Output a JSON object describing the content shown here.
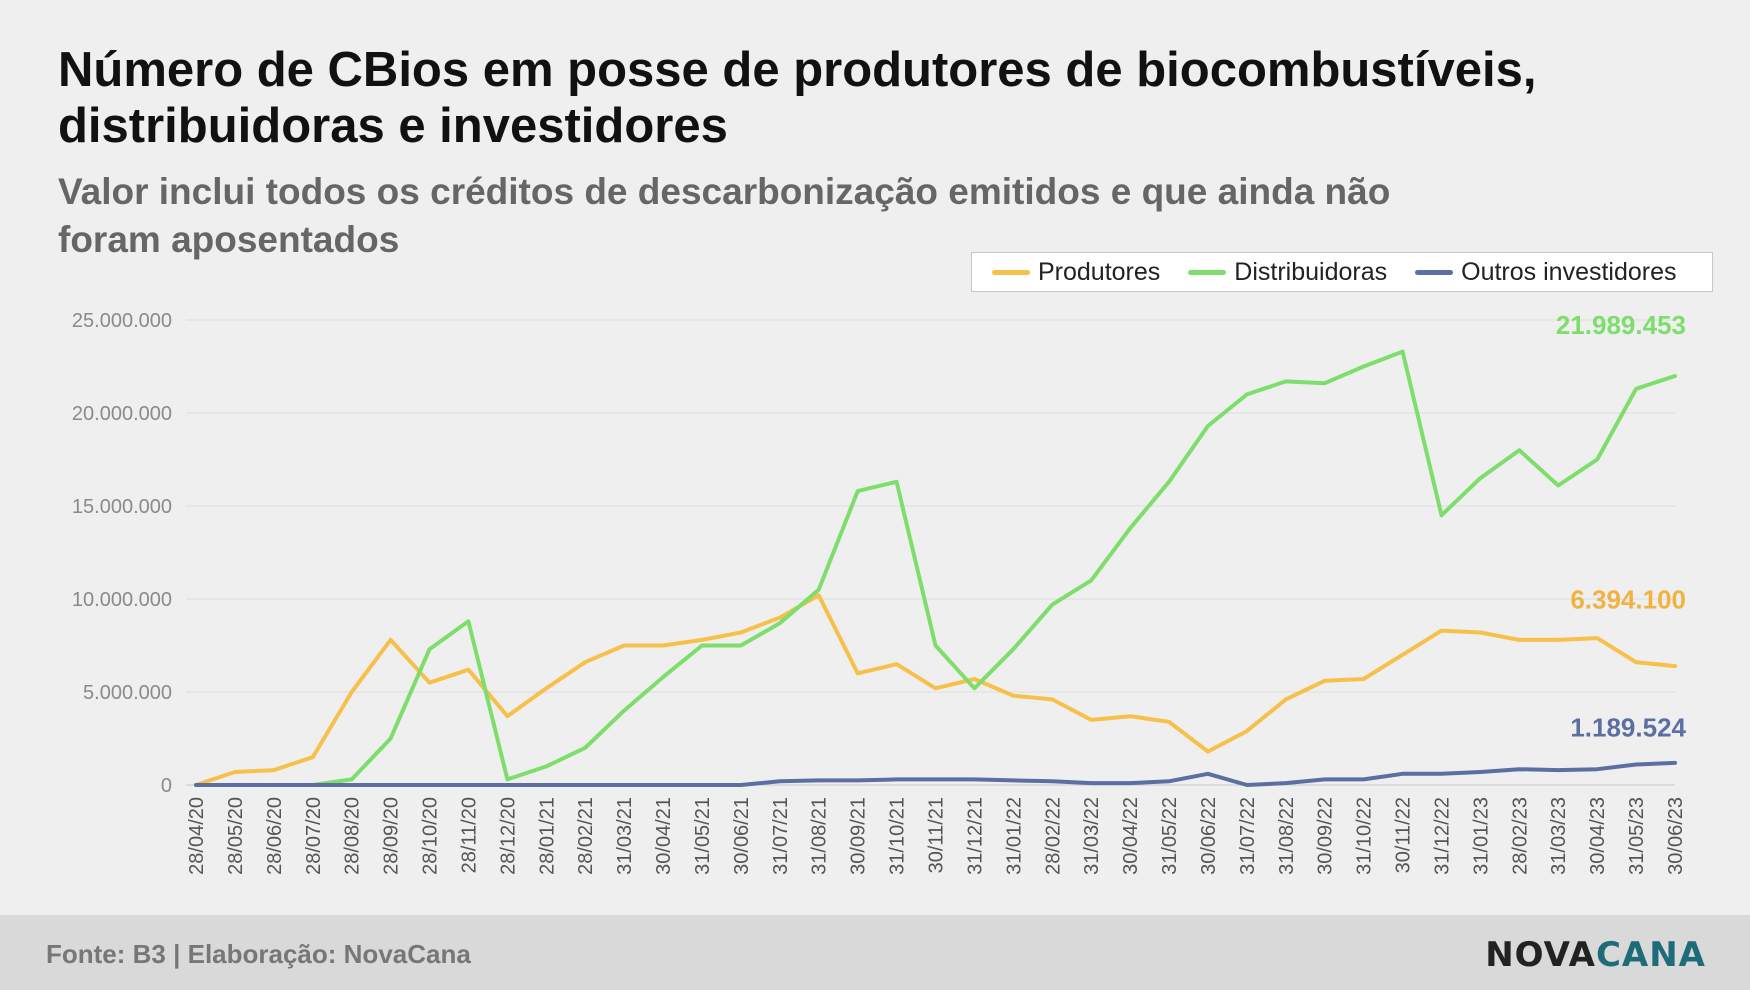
{
  "title": "Número de CBios em posse de produtores de biocombustíveis, distribuidoras e investidores",
  "subtitle": "Valor inclui todos os créditos de descarbonização emitidos e que ainda não foram aposentados",
  "source": "Fonte: B3 | Elaboração: NovaCana",
  "logo": {
    "part1": "NOVA",
    "part2": "CANA"
  },
  "colors": {
    "produtores": "#f7c04a",
    "distribuidoras": "#7ede6c",
    "outros": "#5b6fa3",
    "grid": "#dddddd",
    "tick": "#8a8a8a"
  },
  "chart_data": {
    "type": "line",
    "ylim": [
      0,
      25000000
    ],
    "y_ticks": [
      "0",
      "5.000.000",
      "10.000.000",
      "15.000.000",
      "20.000.000",
      "25.000.000"
    ],
    "x_ticks": [
      "28/04/20",
      "28/05/20",
      "28/06/20",
      "28/07/20",
      "28/08/20",
      "28/09/20",
      "28/10/20",
      "28/11/20",
      "28/12/20",
      "28/01/21",
      "28/02/21",
      "31/03/21",
      "30/04/21",
      "31/05/21",
      "30/06/21",
      "31/07/21",
      "31/08/21",
      "30/09/21",
      "31/10/21",
      "30/11/21",
      "31/12/21",
      "31/01/22",
      "28/02/22",
      "31/03/22",
      "30/04/22",
      "31/05/22",
      "30/06/22",
      "31/07/22",
      "31/08/22",
      "30/09/22",
      "31/10/22",
      "30/11/22",
      "31/12/22",
      "31/01/23",
      "28/02/23",
      "31/03/23",
      "30/04/23",
      "31/05/23",
      "30/06/23"
    ],
    "legend": [
      "Produtores",
      "Distribuidoras",
      "Outros investidores"
    ],
    "end_labels": [
      "21.989.453",
      "6.394.100",
      "1.189.524"
    ],
    "series": [
      {
        "name": "Produtores",
        "values": [
          0,
          700000,
          800000,
          1500000,
          5000000,
          7800000,
          5500000,
          6200000,
          3700000,
          5200000,
          6600000,
          7500000,
          7500000,
          7800000,
          8200000,
          9000000,
          10200000,
          6000000,
          6500000,
          5200000,
          5700000,
          4800000,
          4600000,
          3500000,
          3700000,
          3400000,
          1800000,
          2900000,
          4600000,
          5600000,
          5700000,
          7000000,
          8300000,
          8200000,
          7800000,
          7800000,
          7900000,
          6600000,
          6394100
        ]
      },
      {
        "name": "Distribuidoras",
        "values": [
          0,
          0,
          0,
          0,
          300000,
          2500000,
          7300000,
          8800000,
          300000,
          1000000,
          2000000,
          4000000,
          5800000,
          7500000,
          7500000,
          8700000,
          10500000,
          15800000,
          16300000,
          7500000,
          5200000,
          7300000,
          9700000,
          11000000,
          13800000,
          16300000,
          19300000,
          21000000,
          21700000,
          21600000,
          22500000,
          23300000,
          14500000,
          16500000,
          18000000,
          16100000,
          17500000,
          21300000,
          21989453
        ]
      },
      {
        "name": "Outros investidores",
        "values": [
          0,
          0,
          0,
          0,
          0,
          0,
          0,
          0,
          0,
          0,
          0,
          0,
          0,
          0,
          0,
          200000,
          250000,
          250000,
          300000,
          300000,
          300000,
          250000,
          200000,
          100000,
          100000,
          200000,
          600000,
          0,
          100000,
          300000,
          300000,
          600000,
          600000,
          700000,
          850000,
          800000,
          850000,
          1100000,
          1189524
        ]
      }
    ]
  }
}
